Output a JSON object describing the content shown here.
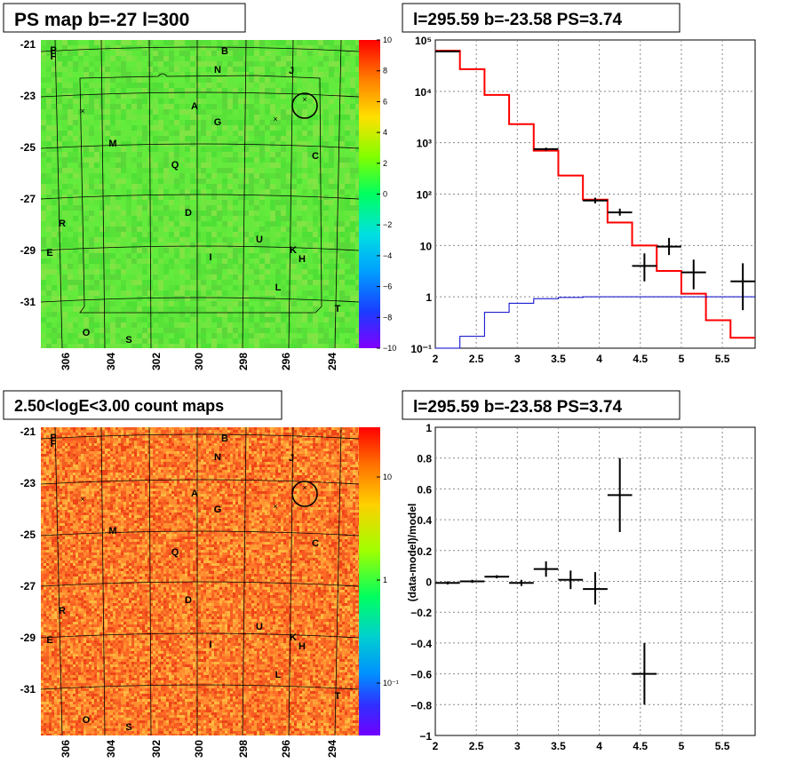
{
  "panels": {
    "map_top": {
      "title": "PS map b=-27 l=300",
      "y_ticks": [
        "-21",
        "-23",
        "-25",
        "-27",
        "-29",
        "-31"
      ],
      "x_ticks": [
        "306",
        "304",
        "302",
        "300",
        "298",
        "296",
        "294"
      ],
      "colorbar_ticks": [
        "10",
        "8",
        "6",
        "4",
        "2",
        "0",
        "−2",
        "−4",
        "−6",
        "−8",
        "−10"
      ],
      "labels": [
        "P",
        "F",
        "B",
        "N",
        "J",
        "A",
        "G",
        "M",
        "C",
        "Q",
        "D",
        "R",
        "U",
        "E",
        "K",
        "H",
        "I",
        "L",
        "T",
        "O",
        "S"
      ]
    },
    "map_bottom": {
      "title": "2.50<logE<3.00 count maps",
      "y_ticks": [
        "-21",
        "-23",
        "-25",
        "-27",
        "-29",
        "-31"
      ],
      "x_ticks": [
        "306",
        "304",
        "302",
        "300",
        "298",
        "296",
        "294"
      ],
      "colorbar_ticks": [
        "10",
        "1",
        "10⁻¹"
      ],
      "labels": [
        "P",
        "F",
        "B",
        "N",
        "J",
        "A",
        "G",
        "M",
        "C",
        "Q",
        "D",
        "R",
        "U",
        "E",
        "K",
        "H",
        "I",
        "L",
        "T",
        "O",
        "S"
      ]
    },
    "spectrum": {
      "title": "l=295.59 b=-23.58 PS=3.74"
    },
    "residual": {
      "title": "l=295.59 b=-23.58 PS=3.74"
    }
  },
  "chart_data": [
    {
      "type": "heatmap",
      "title": "PS map b=-27 l=300",
      "xlabel": "",
      "ylabel": "",
      "x_ticks": [
        306,
        304,
        302,
        300,
        298,
        296,
        294
      ],
      "y_ticks": [
        -21,
        -23,
        -25,
        -27,
        -29,
        -31
      ],
      "color_range": [
        -10,
        10
      ],
      "colormap": "rainbow",
      "markers": [
        "P",
        "F",
        "B",
        "N",
        "J",
        "A",
        "G",
        "M",
        "C",
        "Q",
        "D",
        "R",
        "U",
        "E",
        "K",
        "H",
        "I",
        "L",
        "T",
        "O",
        "S"
      ]
    },
    {
      "type": "line",
      "title": "l=295.59 b=-23.58 PS=3.74",
      "xlabel": "",
      "ylabel": "",
      "xlim": [
        2.0,
        5.9
      ],
      "ylim": [
        0.1,
        100000
      ],
      "log_y": true,
      "grid": true,
      "x_ticks": [
        "2",
        "2.5",
        "3",
        "3.5",
        "4",
        "4.5",
        "5",
        "5.5"
      ],
      "y_ticks": [
        "10⁻¹",
        "1",
        "10",
        "10²",
        "10³",
        "10⁴",
        "10⁵"
      ],
      "bin_edges": [
        2.0,
        2.3,
        2.6,
        2.9,
        3.2,
        3.5,
        3.8,
        4.1,
        4.4,
        4.7,
        5.0,
        5.3,
        5.6,
        5.9
      ],
      "series": [
        {
          "values": [
            62000,
            27000,
            8500,
            2300,
            700,
            230,
            78,
            28,
            10,
            3.2,
            1.15,
            0.35,
            0.16
          ],
          "color": "#ff0000"
        },
        {
          "values": [
            0.1,
            0.17,
            0.5,
            0.75,
            0.92,
            0.97,
            1.0,
            1.0,
            1.0,
            1.0,
            1.0,
            1.0,
            1.0
          ],
          "color": "#0000cc"
        },
        {
          "points": [
            {
              "x": 2.15,
              "y": 60000,
              "xerr": 0.15,
              "ylo": 59000,
              "yhi": 61000
            },
            {
              "x": 3.35,
              "y": 750,
              "xerr": 0.15,
              "ylo": 700,
              "yhi": 800
            },
            {
              "x": 3.95,
              "y": 75,
              "xerr": 0.15,
              "ylo": 66,
              "yhi": 85
            },
            {
              "x": 4.25,
              "y": 44,
              "xerr": 0.15,
              "ylo": 38,
              "yhi": 52
            },
            {
              "x": 4.55,
              "y": 4.0,
              "xerr": 0.15,
              "ylo": 2.0,
              "yhi": 7.0
            },
            {
              "x": 4.85,
              "y": 9.5,
              "xerr": 0.15,
              "ylo": 6.5,
              "yhi": 14
            },
            {
              "x": 5.15,
              "y": 3.0,
              "xerr": 0.15,
              "ylo": 1.4,
              "yhi": 5.3
            },
            {
              "x": 5.75,
              "y": 2.0,
              "xerr": 0.15,
              "ylo": 0.55,
              "yhi": 4.5
            }
          ],
          "color": "#000000"
        }
      ]
    },
    {
      "type": "heatmap",
      "title": "2.50<logE<3.00 count maps",
      "xlabel": "",
      "ylabel": "",
      "x_ticks": [
        306,
        304,
        302,
        300,
        298,
        296,
        294
      ],
      "y_ticks": [
        -21,
        -23,
        -25,
        -27,
        -29,
        -31
      ],
      "log_color": true,
      "color_ticks": [
        "10",
        "1",
        "10⁻¹"
      ],
      "colormap": "rainbow",
      "markers": [
        "P",
        "F",
        "B",
        "N",
        "J",
        "A",
        "G",
        "M",
        "C",
        "Q",
        "D",
        "R",
        "U",
        "E",
        "K",
        "H",
        "I",
        "L",
        "T",
        "O",
        "S"
      ]
    },
    {
      "type": "scatter",
      "title": "l=295.59 b=-23.58 PS=3.74",
      "xlabel": "",
      "ylabel": "(data-model)/model",
      "xlim": [
        2.0,
        5.9
      ],
      "ylim": [
        -1,
        1
      ],
      "grid": true,
      "x_ticks": [
        "2",
        "2.5",
        "3",
        "3.5",
        "4",
        "4.5",
        "5",
        "5.5"
      ],
      "y_ticks": [
        "1",
        "0.8",
        "0.6",
        "0.4",
        "0.2",
        "0",
        "−0.2",
        "−0.4",
        "−0.6",
        "−0.8",
        "−1"
      ],
      "points": [
        {
          "x": 2.15,
          "y": -0.01,
          "xerr": 0.15,
          "ylo": -0.02,
          "yhi": 0.0
        },
        {
          "x": 2.45,
          "y": 0.0,
          "xerr": 0.15,
          "ylo": -0.01,
          "yhi": 0.01
        },
        {
          "x": 2.75,
          "y": 0.03,
          "xerr": 0.15,
          "ylo": 0.02,
          "yhi": 0.04
        },
        {
          "x": 3.05,
          "y": -0.01,
          "xerr": 0.15,
          "ylo": -0.03,
          "yhi": 0.01
        },
        {
          "x": 3.35,
          "y": 0.08,
          "xerr": 0.15,
          "ylo": 0.03,
          "yhi": 0.13
        },
        {
          "x": 3.65,
          "y": 0.01,
          "xerr": 0.15,
          "ylo": -0.05,
          "yhi": 0.07
        },
        {
          "x": 3.95,
          "y": -0.05,
          "xerr": 0.15,
          "ylo": -0.15,
          "yhi": 0.06
        },
        {
          "x": 4.25,
          "y": 0.56,
          "xerr": 0.15,
          "ylo": 0.32,
          "yhi": 0.8
        },
        {
          "x": 4.55,
          "y": -0.6,
          "xerr": 0.15,
          "ylo": -0.8,
          "yhi": -0.4
        }
      ]
    }
  ]
}
